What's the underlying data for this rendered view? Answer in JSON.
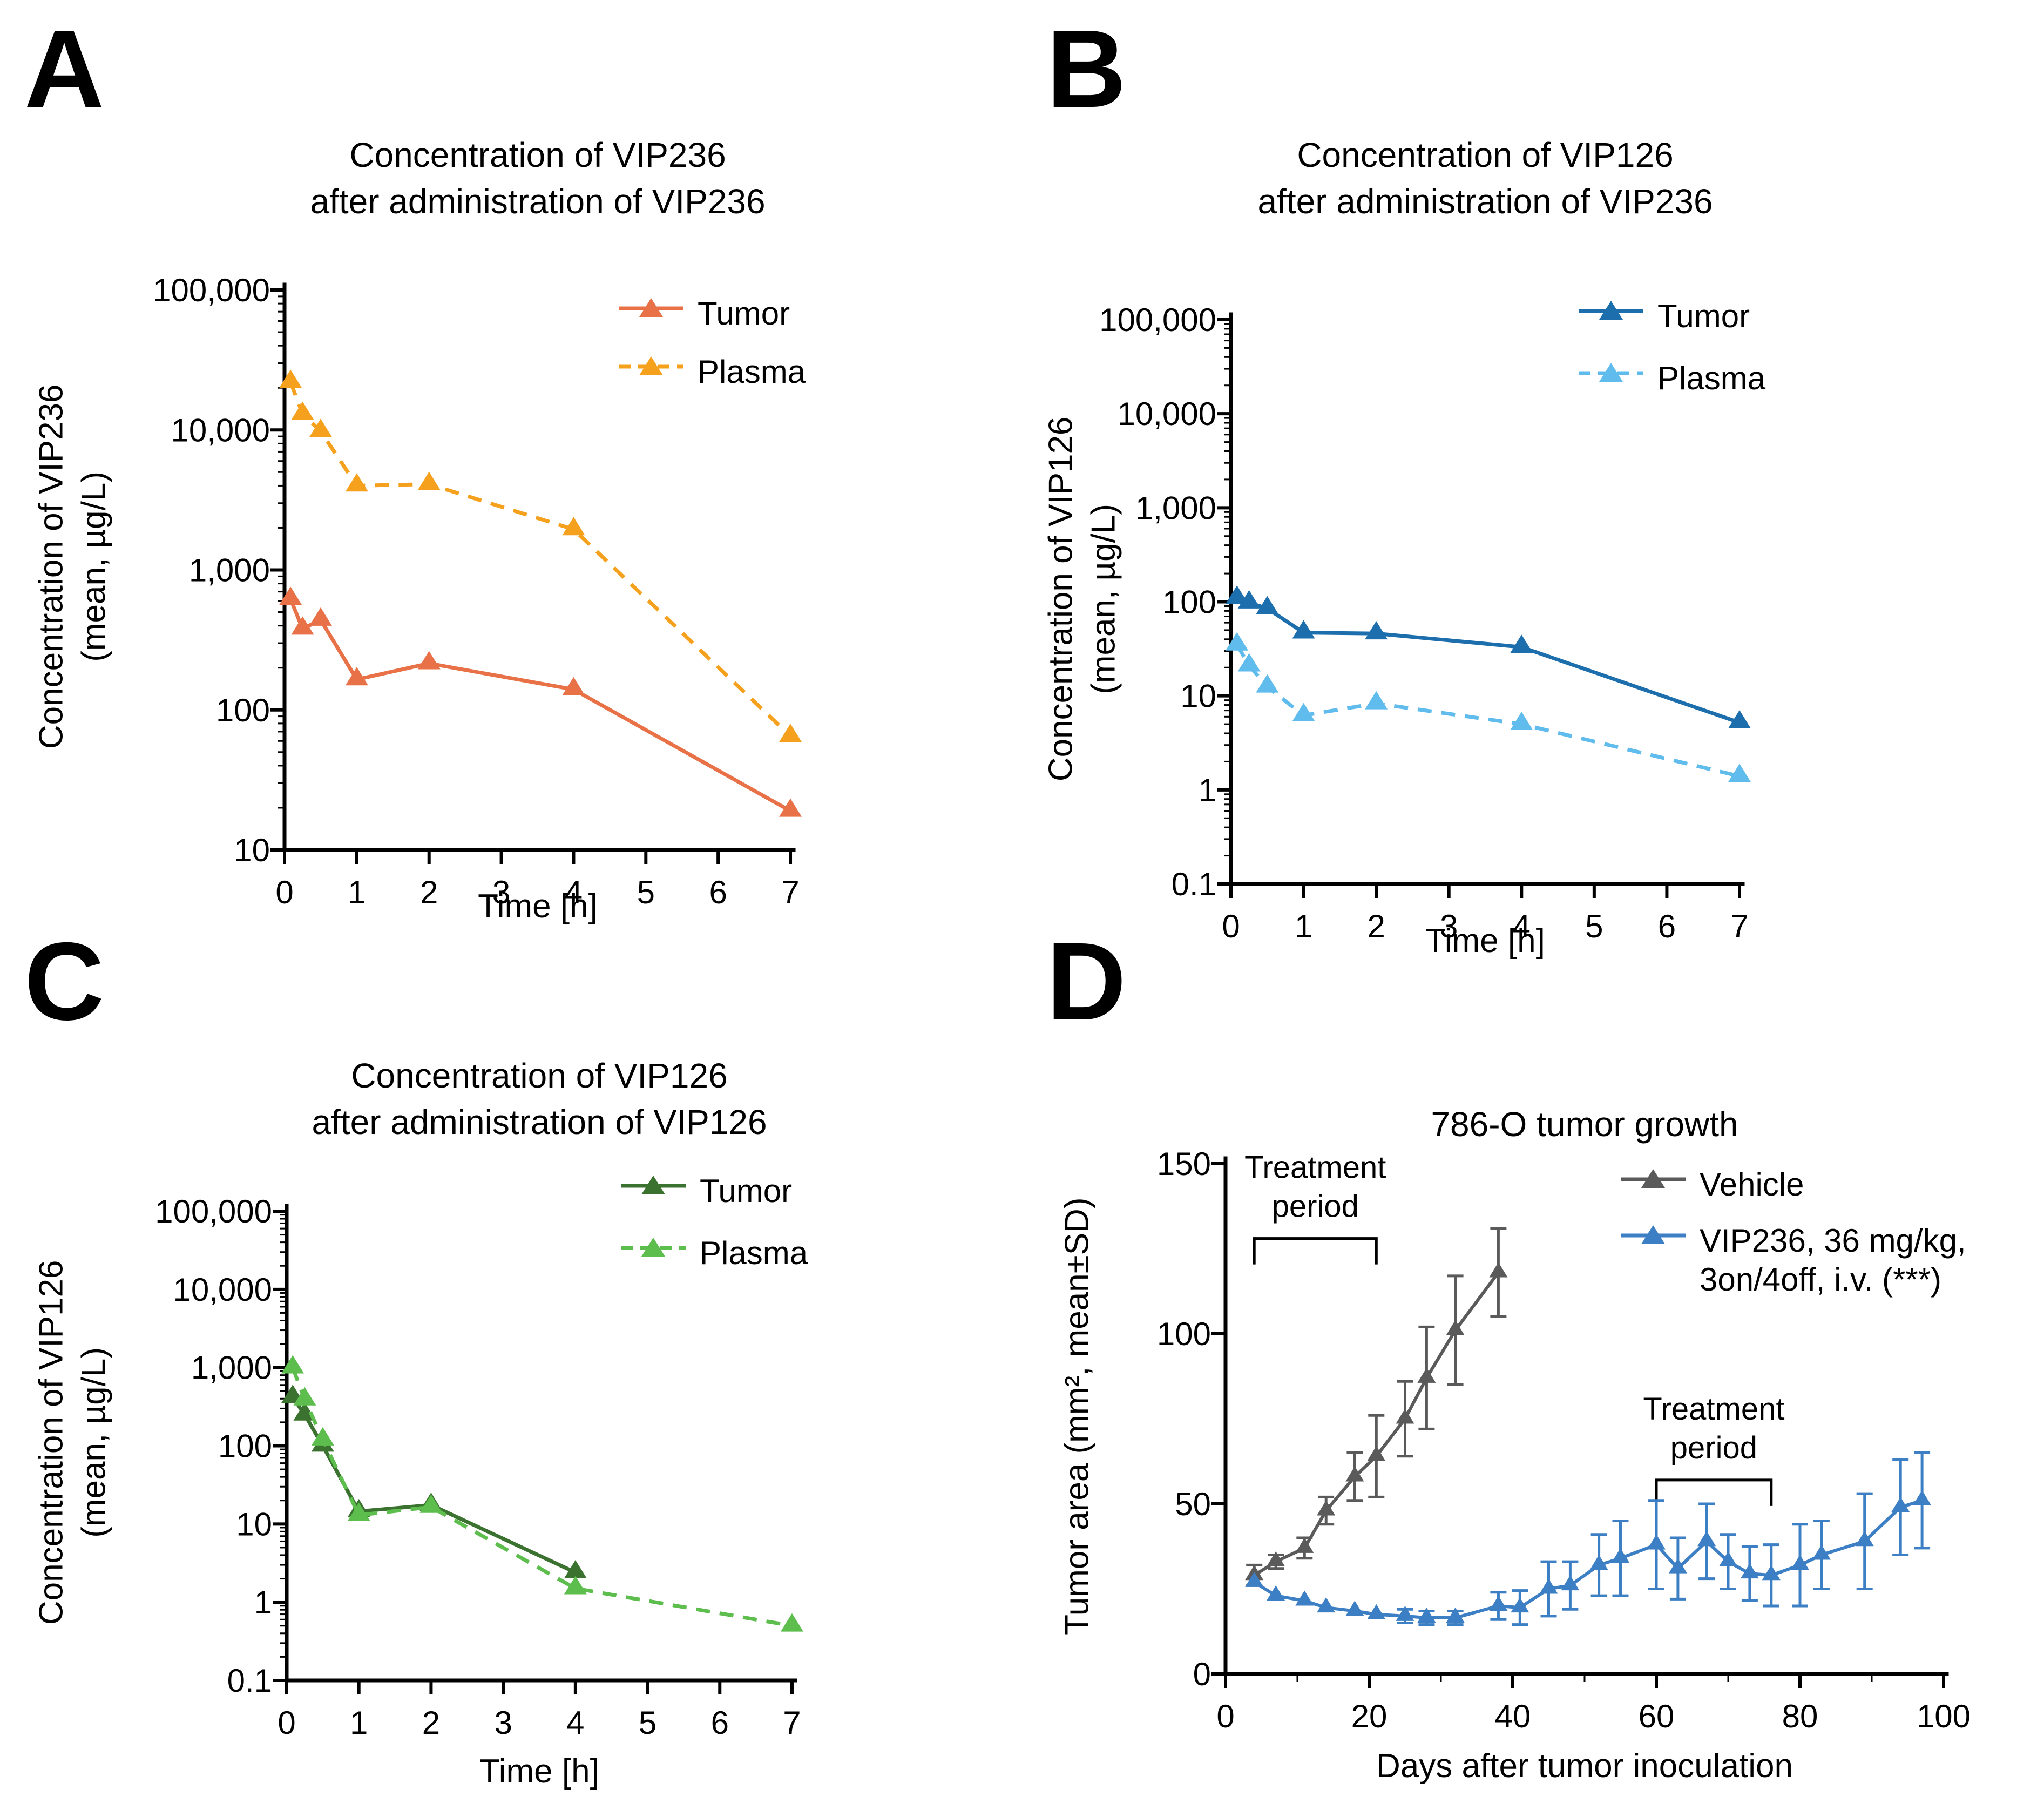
{
  "figure": {
    "panels": [
      {
        "letter": "A",
        "title_lines": [
          "Concentration of VIP236",
          "after administration of VIP236"
        ],
        "xlabel": "Time [h]",
        "ylabel_lines": [
          "Concentration of VIP236",
          "(mean, µg/L)"
        ],
        "legend": [
          {
            "lines": [
              "Tumor"
            ]
          },
          {
            "lines": [
              "Plasma"
            ]
          }
        ],
        "chart_data": {
          "type": "line",
          "title": "Concentration of VIP236 after administration of VIP236",
          "xlabel": "Time [h]",
          "ylabel": "Concentration of VIP236 (mean, µg/L)",
          "y_scale": "log",
          "y_range": [
            10,
            100000
          ],
          "x_range": [
            0,
            7
          ],
          "x_ticks": [
            0,
            1,
            2,
            3,
            4,
            5,
            6,
            7
          ],
          "y_tick_labels": [
            "100,000",
            "10,000",
            "1,000",
            "100",
            "10"
          ],
          "grid": false,
          "legend_position": "top-right-inside",
          "series": [
            {
              "name": "Tumor",
              "color": "#E87147",
              "line": "solid",
              "marker": "triangle",
              "x": [
                0.083,
                0.25,
                0.5,
                1,
                2,
                4,
                7
              ],
              "values": [
                620,
                380,
                440,
                165,
                215,
                140,
                19
              ]
            },
            {
              "name": "Plasma",
              "color": "#F6A11E",
              "line": "dashed",
              "marker": "triangle",
              "x": [
                0.083,
                0.25,
                0.5,
                1,
                2,
                4,
                7
              ],
              "values": [
                22000,
                13000,
                9800,
                4000,
                4100,
                1950,
                65
              ]
            }
          ]
        }
      },
      {
        "letter": "B",
        "title_lines": [
          "Concentration of VIP126",
          "after administration of VIP236"
        ],
        "xlabel": "Time [h]",
        "ylabel_lines": [
          "Concentration of VIP126",
          "(mean, µg/L)"
        ],
        "legend": [
          {
            "lines": [
              "Tumor"
            ]
          },
          {
            "lines": [
              "Plasma"
            ]
          }
        ],
        "chart_data": {
          "type": "line",
          "title": "Concentration of VIP126 after administration of VIP236",
          "xlabel": "Time [h]",
          "ylabel": "Concentration of VIP126 (mean, µg/L)",
          "y_scale": "log",
          "y_range": [
            0.1,
            100000
          ],
          "x_range": [
            0,
            7
          ],
          "x_ticks": [
            0,
            1,
            2,
            3,
            4,
            5,
            6,
            7
          ],
          "y_tick_labels": [
            "100,000",
            "10,000",
            "1,000",
            "100",
            "10",
            "1",
            "0.1"
          ],
          "grid": false,
          "legend_position": "top-right-inside",
          "series": [
            {
              "name": "Tumor",
              "color": "#1C6EAD",
              "line": "solid",
              "marker": "triangle",
              "x": [
                0.083,
                0.25,
                0.5,
                1,
                2,
                4,
                7
              ],
              "values": [
                110,
                98,
                85,
                47,
                46,
                33,
                5.2
              ]
            },
            {
              "name": "Plasma",
              "color": "#5FBCEC",
              "line": "dashed",
              "marker": "triangle",
              "x": [
                0.083,
                0.25,
                0.5,
                1,
                2,
                4,
                7
              ],
              "values": [
                35,
                21,
                12.5,
                6.2,
                8.3,
                5,
                1.4
              ]
            }
          ]
        }
      },
      {
        "letter": "C",
        "title_lines": [
          "Concentration of VIP126",
          "after administration of VIP126"
        ],
        "xlabel": "Time [h]",
        "ylabel_lines": [
          "Concentration of VIP126",
          "(mean, µg/L)"
        ],
        "legend": [
          {
            "lines": [
              "Tumor"
            ]
          },
          {
            "lines": [
              "Plasma"
            ]
          }
        ],
        "chart_data": {
          "type": "line",
          "title": "Concentration of VIP126 after administration of VIP126",
          "xlabel": "Time [h]",
          "ylabel": "Concentration of VIP126 (mean, µg/L)",
          "y_scale": "log",
          "y_range": [
            0.1,
            100000
          ],
          "x_range": [
            0,
            7
          ],
          "x_ticks": [
            0,
            1,
            2,
            3,
            4,
            5,
            6,
            7
          ],
          "y_tick_labels": [
            "100,000",
            "10,000",
            "1,000",
            "100",
            "10",
            "1",
            "0.1"
          ],
          "grid": false,
          "legend_position": "top-right-inside",
          "series": [
            {
              "name": "Tumor",
              "color": "#3B7230",
              "line": "solid",
              "marker": "triangle",
              "x": [
                0.083,
                0.25,
                0.5,
                1,
                2,
                4
              ],
              "values": [
                420,
                250,
                100,
                14.5,
                17.5,
                2.4
              ]
            },
            {
              "name": "Plasma",
              "color": "#5DBE4E",
              "line": "dashed",
              "marker": "triangle",
              "x": [
                0.083,
                0.25,
                0.5,
                1,
                2,
                4,
                7
              ],
              "values": [
                1000,
                390,
                120,
                13,
                16.5,
                1.5,
                0.5
              ]
            }
          ]
        }
      },
      {
        "letter": "D",
        "title_lines": [
          "786-O tumor growth"
        ],
        "xlabel": "Days after tumor inoculation",
        "ylabel_lines": [
          "Tumor area (mm², mean±SD)"
        ],
        "legend": [
          {
            "lines": [
              "Vehicle"
            ]
          },
          {
            "lines": [
              "VIP236, 36 mg/kg,",
              "3on/4off, i.v. (***)"
            ]
          }
        ],
        "chart_data": {
          "type": "line_errorbar",
          "title": "786-O tumor growth",
          "xlabel": "Days after tumor inoculation",
          "ylabel": "Tumor area (mm², mean±SD)",
          "y_scale": "linear",
          "y_range": [
            0,
            150
          ],
          "x_range": [
            0,
            100
          ],
          "x_ticks": [
            0,
            20,
            40,
            60,
            80,
            100
          ],
          "x_minor_ticks": [
            10,
            30,
            50,
            70,
            90
          ],
          "y_tick_labels": [
            "150",
            "100",
            "50",
            "0"
          ],
          "y_ticks": [
            150,
            100,
            50,
            0
          ],
          "grid": false,
          "legend_position": "top-right-inside",
          "series": [
            {
              "name": "Vehicle",
              "color": "#5A5A5A",
              "line": "solid",
              "marker": "triangle",
              "x": [
                4,
                7,
                11,
                14,
                18,
                21,
                25,
                28,
                32,
                38
              ],
              "values": [
                29,
                33,
                37,
                48,
                58,
                64,
                75,
                87,
                101,
                118
              ],
              "sd": [
                3,
                2,
                3,
                4,
                7,
                12,
                11,
                15,
                16,
                13
              ]
            },
            {
              "name": "VIP236, 36 mg/kg, 3on/4off, i.v. (***)",
              "color": "#3C7FC4",
              "line": "solid",
              "marker": "triangle",
              "x": [
                4,
                7,
                11,
                14,
                18,
                21,
                25,
                28,
                32,
                38,
                41,
                45,
                48,
                52,
                55,
                60,
                63,
                67,
                70,
                73,
                76,
                80,
                83,
                89,
                94,
                97
              ],
              "values": [
                27,
                23,
                21.5,
                19.5,
                18.5,
                17.5,
                17,
                16.5,
                16.5,
                20,
                19.5,
                25,
                26,
                32,
                34,
                38,
                31,
                39,
                33,
                29.5,
                29,
                32,
                35,
                39,
                49,
                51
              ],
              "sd": [
                0,
                0,
                0,
                0,
                0,
                0,
                2,
                2,
                2,
                4,
                5,
                8,
                7,
                9,
                11,
                13,
                9,
                11,
                8,
                8,
                9,
                12,
                10,
                14,
                14,
                14
              ]
            }
          ],
          "annotations": [
            {
              "lines": [
                "Treatment",
                "period"
              ],
              "x_start": 4,
              "x_end": 21,
              "y": 128
            },
            {
              "lines": [
                "Treatment",
                "period"
              ],
              "x_start": 60,
              "x_end": 76,
              "y": 57
            }
          ]
        }
      }
    ]
  }
}
